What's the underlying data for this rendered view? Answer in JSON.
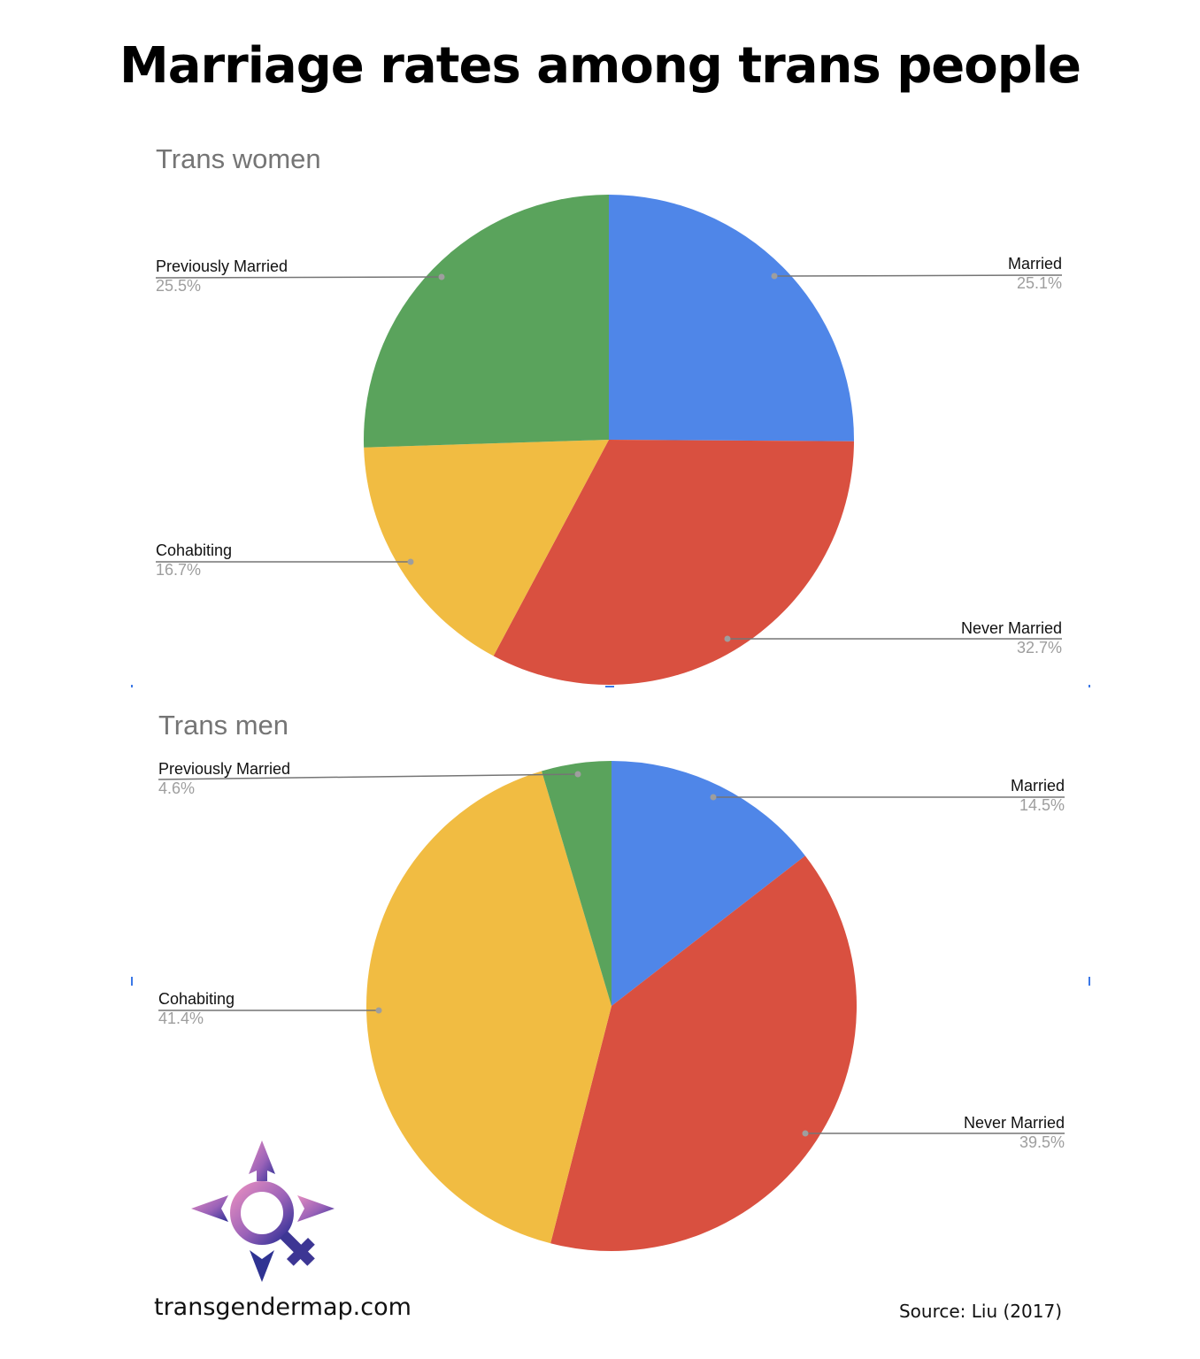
{
  "title": "Marriage rates among trans people",
  "footer": {
    "site": "transgendermap.com",
    "source": "Source: Liu (2017)"
  },
  "colors": {
    "married": "#4f86e8",
    "never_married": "#d95040",
    "cohabiting": "#f1bc42",
    "previously_married": "#5aa35c",
    "leader": "#757575",
    "dot": "#9e9e9e"
  },
  "charts": [
    {
      "title": "Trans women",
      "labels": [
        {
          "name": "Married",
          "pct": "25.1%"
        },
        {
          "name": "Never Married",
          "pct": "32.7%"
        },
        {
          "name": "Cohabiting",
          "pct": "16.7%"
        },
        {
          "name": "Previously Married",
          "pct": "25.5%"
        }
      ]
    },
    {
      "title": "Trans men",
      "labels": [
        {
          "name": "Married",
          "pct": "14.5%"
        },
        {
          "name": "Never Married",
          "pct": "39.5%"
        },
        {
          "name": "Cohabiting",
          "pct": "41.4%"
        },
        {
          "name": "Previously Married",
          "pct": "4.6%"
        }
      ]
    }
  ],
  "chart_data": [
    {
      "type": "pie",
      "title": "Trans women",
      "categories": [
        "Married",
        "Never Married",
        "Cohabiting",
        "Previously Married"
      ],
      "values": [
        25.1,
        32.7,
        16.7,
        25.5
      ],
      "unit": "%",
      "colors": [
        "#4f86e8",
        "#d95040",
        "#f1bc42",
        "#5aa35c"
      ],
      "start_angle": "12 o'clock, clockwise",
      "legend": "labels with leader lines"
    },
    {
      "type": "pie",
      "title": "Trans men",
      "categories": [
        "Married",
        "Never Married",
        "Cohabiting",
        "Previously Married"
      ],
      "values": [
        14.5,
        39.5,
        41.4,
        4.6
      ],
      "unit": "%",
      "colors": [
        "#4f86e8",
        "#d95040",
        "#f1bc42",
        "#5aa35c"
      ],
      "start_angle": "12 o'clock, clockwise",
      "legend": "labels with leader lines"
    }
  ]
}
